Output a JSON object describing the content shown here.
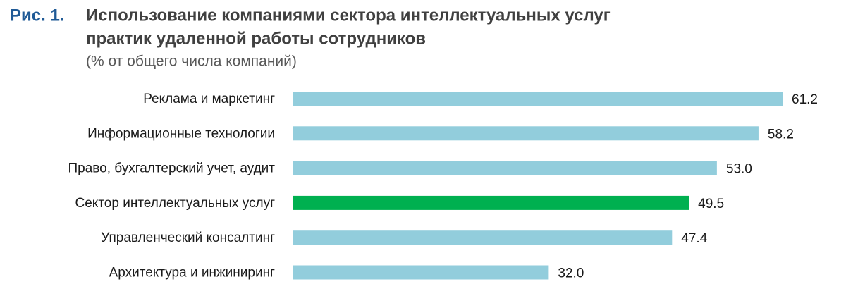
{
  "chart_data": {
    "type": "bar",
    "orientation": "horizontal",
    "figure_label": "Рис. 1.",
    "title": [
      "Использование компаниями сектора интеллектуальных услуг",
      "практик удаленной работы сотрудников"
    ],
    "subtitle": "(% от общего числа компаний)",
    "categories": [
      "Реклама и маркетинг",
      "Информационные технологии",
      "Право, бухгалтерский учет, аудит",
      "Сектор интеллектуальных услуг",
      "Управленческий консалтинг",
      "Архитектура и инжиниринг"
    ],
    "values": [
      61.2,
      58.2,
      53.0,
      49.5,
      47.4,
      32.0
    ],
    "value_labels": [
      "61.2",
      "58.2",
      "53.0",
      "49.5",
      "47.4",
      "32.0"
    ],
    "colors": [
      "#92cddc",
      "#92cddc",
      "#92cddc",
      "#00b050",
      "#92cddc",
      "#92cddc"
    ]
  }
}
